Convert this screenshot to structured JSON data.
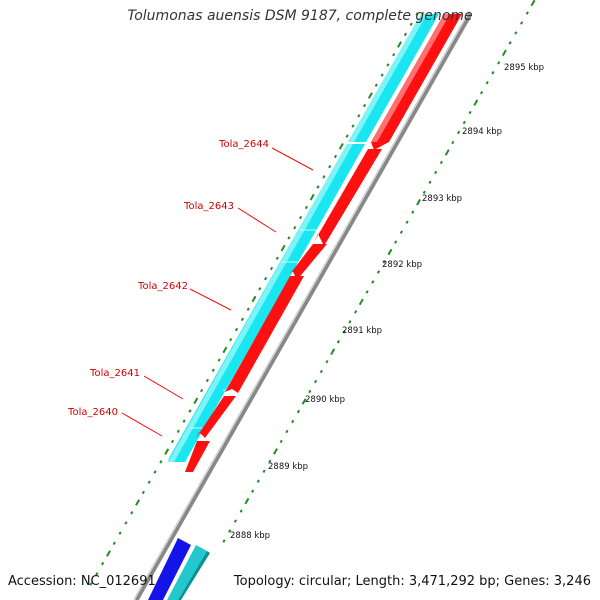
{
  "header": {
    "title": "Tolumonas auensis DSM 9187, complete genome"
  },
  "footer": {
    "accession": "Accession: NC_012691",
    "summary": "Topology: circular; Length: 3,471,292 bp; Genes: 3,246"
  },
  "colors": {
    "forward_cds": "#19e6f0",
    "reverse_cds": "#ff1010",
    "other_forward": "#1414e6",
    "other_teal": "#22c8cc",
    "backbone": "#888888",
    "tick": "#228b22",
    "label": "#d40000"
  },
  "scale": {
    "unit": "kbp",
    "labels": [
      "2895 kbp",
      "2894 kbp",
      "2893 kbp",
      "2892 kbp",
      "2891 kbp",
      "2890 kbp",
      "2889 kbp",
      "2888 kbp"
    ]
  },
  "genes": [
    {
      "label": "Tola_2644"
    },
    {
      "label": "Tola_2643"
    },
    {
      "label": "Tola_2642"
    },
    {
      "label": "Tola_2641"
    },
    {
      "label": "Tola_2640"
    }
  ]
}
